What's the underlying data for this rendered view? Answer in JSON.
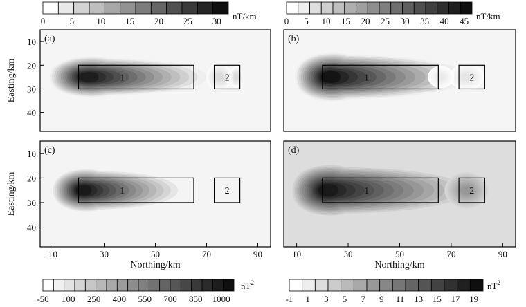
{
  "figure": {
    "units": {
      "top_left": "nT/km",
      "top_right": "nT/km",
      "bottom_left": "nT",
      "bottom_right": "nT",
      "superscript": "2"
    },
    "colorbars": [
      {
        "id": "cb-top-left",
        "ticks": [
          "0",
          "5",
          "10",
          "15",
          "20",
          "25",
          "30"
        ],
        "n_swatches": 12,
        "min": 0,
        "max": 32
      },
      {
        "id": "cb-top-right",
        "ticks": [
          "0",
          "5",
          "10",
          "15",
          "20",
          "25",
          "30",
          "35",
          "40",
          "45"
        ],
        "n_swatches": 16,
        "min": 0,
        "max": 47
      },
      {
        "id": "cb-bottom-left",
        "ticks": [
          "-50",
          "100",
          "250",
          "400",
          "550",
          "700",
          "850",
          "1000"
        ],
        "n_swatches": 18,
        "min": -50,
        "max": 1050
      },
      {
        "id": "cb-bottom-right",
        "ticks": [
          "-1",
          "1",
          "3",
          "5",
          "7",
          "9",
          "11",
          "13",
          "15",
          "17",
          "19"
        ],
        "n_swatches": 15,
        "min": -1,
        "max": 20
      }
    ]
  },
  "chart_data": [
    {
      "type": "heatmap",
      "panel": "(a)",
      "x_range": [
        5,
        95
      ],
      "y_range": [
        5,
        48
      ],
      "y_reversed": true,
      "xticks": [],
      "yticks": [
        "10",
        "20",
        "30",
        "40"
      ],
      "xlabel": "",
      "ylabel": "Easting/km",
      "background": 0,
      "vmin": 0,
      "vmax": 32,
      "anomalies": [
        {
          "cx": 24,
          "cy": 25,
          "ax": 9,
          "ay": 5,
          "peak": 30,
          "tail": 0.55,
          "len": 38
        },
        {
          "cx": 75,
          "cy": 25,
          "ax": 3,
          "ay": 3,
          "peak": 5,
          "tail": 0,
          "len": 0
        },
        {
          "cx": 81.5,
          "cy": 25,
          "ax": 1.5,
          "ay": 2.5,
          "peak": 5,
          "tail": 0,
          "len": 0
        }
      ],
      "boxes": [
        {
          "label": "1",
          "x": [
            20,
            65
          ],
          "y": [
            20,
            30
          ]
        },
        {
          "label": "2",
          "x": [
            73,
            83
          ],
          "y": [
            20,
            30
          ]
        }
      ]
    },
    {
      "type": "heatmap",
      "panel": "(b)",
      "x_range": [
        5,
        95
      ],
      "y_range": [
        5,
        48
      ],
      "y_reversed": true,
      "xticks": [],
      "yticks": [],
      "xlabel": "",
      "ylabel": "",
      "background": 0,
      "vmin": 0,
      "vmax": 47,
      "anomalies": [
        {
          "cx": 23,
          "cy": 25,
          "ax": 8,
          "ay": 6,
          "peak": 46,
          "tail": 0.45,
          "len": 50
        },
        {
          "cx": 76,
          "cy": 25,
          "ax": 4,
          "ay": 3,
          "peak": 5,
          "tail": 0,
          "len": 0
        },
        {
          "cx": 66,
          "cy": 25,
          "ax": 3,
          "ay": 2.5,
          "peak": 4,
          "tail": 0,
          "len": 0
        }
      ],
      "boxes": [
        {
          "label": "1",
          "x": [
            20,
            65
          ],
          "y": [
            20,
            30
          ]
        },
        {
          "label": "2",
          "x": [
            73,
            83
          ],
          "y": [
            20,
            30
          ]
        }
      ]
    },
    {
      "type": "heatmap",
      "panel": "(c)",
      "x_range": [
        5,
        95
      ],
      "y_range": [
        5,
        48
      ],
      "y_reversed": true,
      "xticks": [
        "10",
        "30",
        "50",
        "70",
        "90"
      ],
      "yticks": [
        "10",
        "20",
        "30",
        "40"
      ],
      "xlabel": "Northing/km",
      "ylabel": "Easting/km",
      "background": 0,
      "vmin": -50,
      "vmax": 1050,
      "anomalies": [
        {
          "cx": 22,
          "cy": 25,
          "ax": 7,
          "ay": 5,
          "peak": 1000,
          "tail": 0.5,
          "len": 32
        }
      ],
      "boxes": [
        {
          "label": "1",
          "x": [
            20,
            65
          ],
          "y": [
            20,
            30
          ]
        },
        {
          "label": "2",
          "x": [
            73,
            83
          ],
          "y": [
            20,
            30
          ]
        }
      ]
    },
    {
      "type": "heatmap",
      "panel": "(d)",
      "x_range": [
        5,
        95
      ],
      "y_range": [
        5,
        48
      ],
      "y_reversed": true,
      "xticks": [
        "10",
        "30",
        "50",
        "70",
        "90"
      ],
      "yticks": [],
      "xlabel": "Northing/km",
      "ylabel": "",
      "background": 2,
      "vmin": -1,
      "vmax": 20,
      "anomalies": [
        {
          "cx": 22,
          "cy": 25,
          "ax": 8,
          "ay": 6,
          "peak": 19,
          "tail": 0.5,
          "len": 48
        },
        {
          "cx": 76,
          "cy": 25,
          "ax": 5,
          "ay": 4,
          "peak": 8,
          "tail": 0,
          "len": 0
        }
      ],
      "boxes": [
        {
          "label": "1",
          "x": [
            20,
            65
          ],
          "y": [
            20,
            30
          ]
        },
        {
          "label": "2",
          "x": [
            73,
            83
          ],
          "y": [
            20,
            30
          ]
        }
      ]
    }
  ]
}
